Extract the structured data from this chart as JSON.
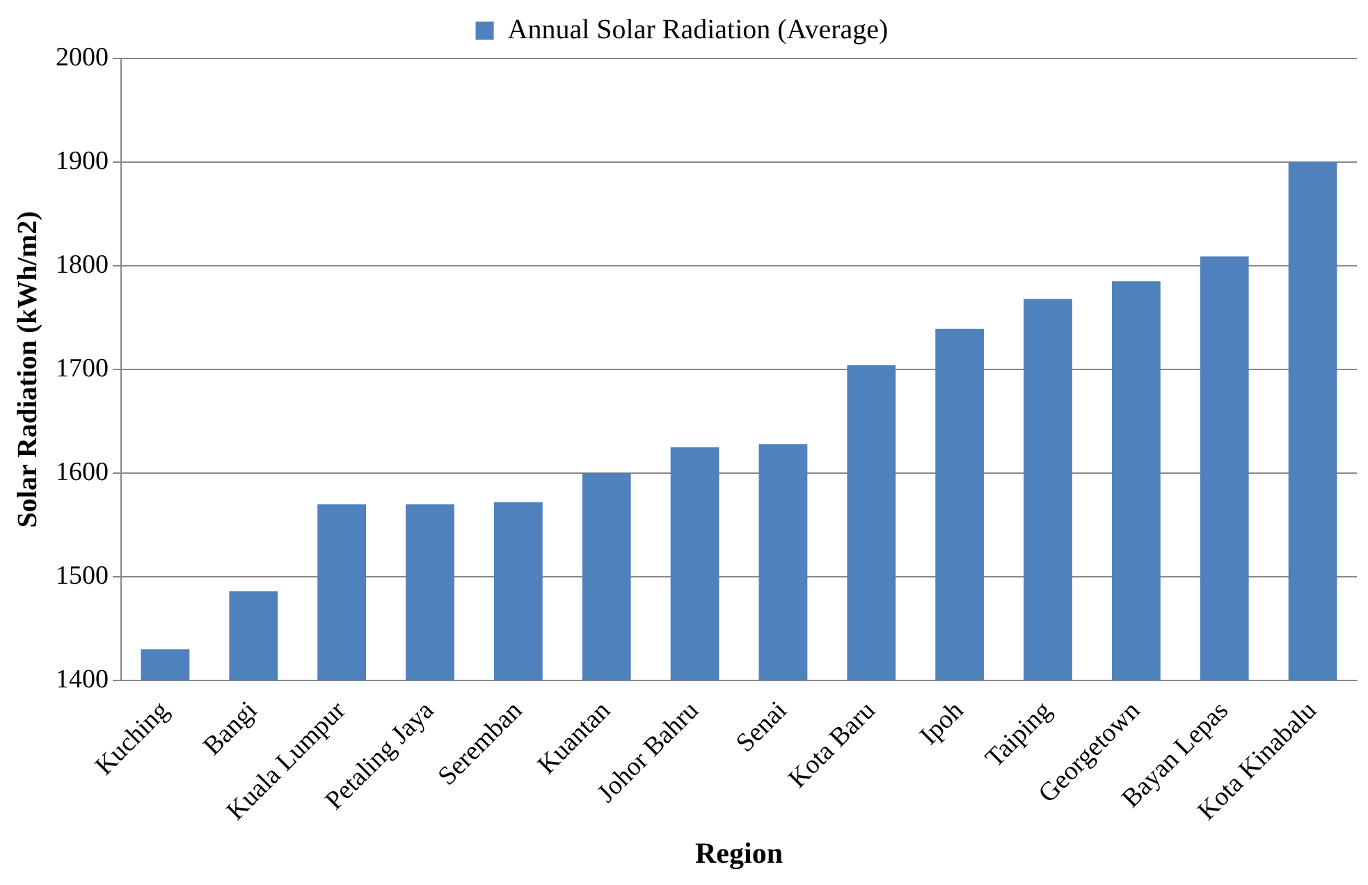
{
  "chart_data": {
    "type": "bar",
    "xlabel": "Region",
    "ylabel": "Solar Radiation (kWh/m2)",
    "categories": [
      "Kuching",
      "Bangi",
      "Kuala Lumpur",
      "Petaling Jaya",
      "Seremban",
      "Kuantan",
      "Johor Bahru",
      "Senai",
      "Kota Baru",
      "Ipoh",
      "Taiping",
      "Georgetown",
      "Bayan Lepas",
      "Kota Kinabalu"
    ],
    "series": [
      {
        "name": "Annual Solar Radiation (Average)",
        "color": "#4f81bd",
        "values": [
          1430,
          1486,
          1570,
          1570,
          1572,
          1600,
          1625,
          1628,
          1704,
          1739,
          1768,
          1785,
          1809,
          1900
        ]
      }
    ],
    "ylim": [
      1400,
      2000
    ],
    "yticks": [
      1400,
      1500,
      1600,
      1700,
      1800,
      1900,
      2000
    ],
    "grid": "y",
    "legend": "top"
  }
}
